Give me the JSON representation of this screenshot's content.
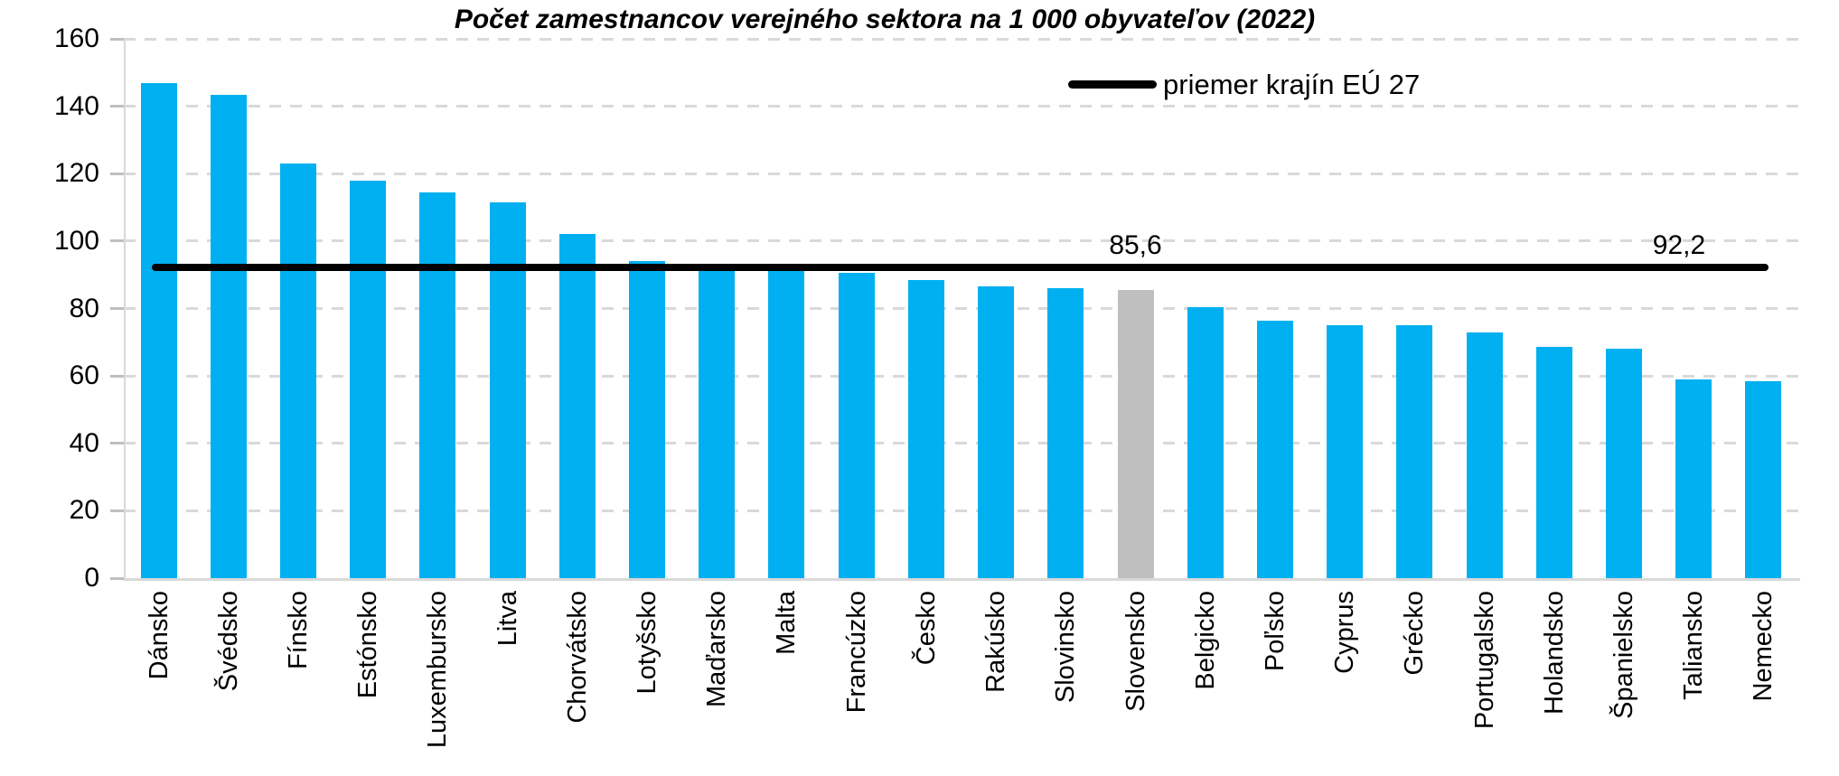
{
  "chart_data": {
    "type": "bar",
    "title": "Počet zamestnancov verejného sektora na 1 000 obyvateľov (2022)",
    "categories": [
      "Dánsko",
      "Švédsko",
      "Fínsko",
      "Estónsko",
      "Luxembursko",
      "Litva",
      "Chorvátsko",
      "Lotyšsko",
      "Maďarsko",
      "Malta",
      "Francúzko",
      "Česko",
      "Rakúsko",
      "Slovinsko",
      "Slovensko",
      "Belgicko",
      "Poľsko",
      "Cyprus",
      "Grécko",
      "Portugalsko",
      "Holandsko",
      "Španielsko",
      "Taliansko",
      "Nemecko"
    ],
    "values": [
      147,
      143.5,
      123,
      118,
      114.5,
      111.5,
      102,
      94,
      91,
      91,
      90.5,
      88.5,
      86.5,
      86,
      85.6,
      80.5,
      76.5,
      75,
      75,
      73,
      68.5,
      68,
      59,
      58.5
    ],
    "bar_color": "#00b0f0",
    "highlight_category": "Slovensko",
    "highlight_color": "#bfbfbf",
    "average_line": {
      "value": 92.2,
      "label": "92,2",
      "legend_label": "priemer krajín EÚ 27",
      "color": "#000000"
    },
    "annotations": [
      {
        "text": "85,6",
        "attached_to": "Slovensko"
      },
      {
        "text": "92,2",
        "attached_to": "average-line"
      }
    ],
    "y_axis": {
      "min": 0,
      "max": 160,
      "step": 20,
      "tick_labels": [
        "0",
        "20",
        "40",
        "60",
        "80",
        "100",
        "120",
        "140",
        "160"
      ]
    },
    "xlabel": "",
    "ylabel": "",
    "grid": "horizontal-dashed",
    "gridline_color": "#d9d9d9",
    "legend_position": "top-right"
  }
}
